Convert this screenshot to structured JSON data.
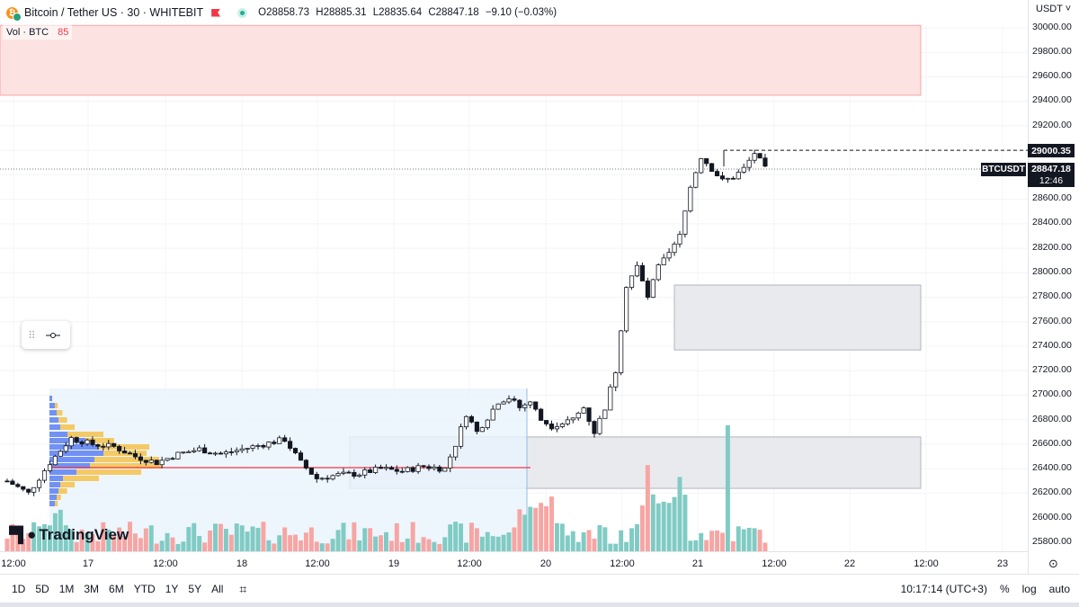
{
  "header": {
    "symbol_title": "Bitcoin / Tether US · 30 · WHITEBIT",
    "ohlc": [
      {
        "label": "O",
        "value": "28858.73"
      },
      {
        "label": "H",
        "value": "28885.31"
      },
      {
        "label": "L",
        "value": "28835.64"
      },
      {
        "label": "C",
        "value": "28847.18"
      }
    ],
    "change": "−9.10 (−0.03%)"
  },
  "volume_legend": {
    "label": "Vol · BTC",
    "value": "85"
  },
  "price_axis": {
    "currency": "USDT",
    "ticks": [
      "30000.00",
      "29800.00",
      "29600.00",
      "29400.00",
      "29200.00",
      "28600.00",
      "28400.00",
      "28200.00",
      "28000.00",
      "27800.00",
      "27600.00",
      "27400.00",
      "27200.00",
      "27000.00",
      "26800.00",
      "26600.00",
      "26400.00",
      "26200.00",
      "26000.00",
      "25800.00"
    ],
    "high_flag": "29000.35",
    "symbol_flag": "BTCUSDT",
    "last_price_flag": "28847.18",
    "countdown": "12:46"
  },
  "time_axis": {
    "ticks": [
      "12:00",
      "17",
      "12:00",
      "18",
      "12:00",
      "19",
      "12:00",
      "20",
      "12:00",
      "21",
      "12:00",
      "22",
      "12:00",
      "23"
    ]
  },
  "bottom_bar": {
    "ranges": [
      "1D",
      "5D",
      "1M",
      "3M",
      "6M",
      "YTD",
      "1Y",
      "5Y",
      "All"
    ],
    "clock": "10:17:14 (UTC+3)",
    "percent": "%",
    "log": "log",
    "auto": "auto"
  },
  "watermark": "TradingView",
  "colors": {
    "up": "#26a69a",
    "down": "#ef5350",
    "candle": "#131722",
    "vol_up": "#80cbc4",
    "vol_down": "#f7a5a3",
    "zone_red": "#fde2e2",
    "zone_gray": "#e9eaee",
    "vp_blue": "#5b7ff2",
    "vp_yellow": "#f5c24b",
    "poc": "#f23645"
  },
  "chart_data": {
    "type": "candlestick",
    "title": "Bitcoin / Tether US · 30 · WHITEBIT",
    "x_axis_labels": [
      "12:00",
      "17",
      "12:00",
      "18",
      "12:00",
      "19",
      "12:00",
      "20",
      "12:00",
      "21",
      "12:00",
      "22",
      "12:00",
      "23"
    ],
    "ylim": [
      25700,
      30080
    ],
    "price_path": [
      [
        0,
        26300
      ],
      [
        4,
        26200
      ],
      [
        8,
        26450
      ],
      [
        12,
        26650
      ],
      [
        16,
        26600
      ],
      [
        20,
        26580
      ],
      [
        24,
        26500
      ],
      [
        28,
        26450
      ],
      [
        32,
        26520
      ],
      [
        36,
        26560
      ],
      [
        40,
        26520
      ],
      [
        44,
        26560
      ],
      [
        48,
        26600
      ],
      [
        52,
        26640
      ],
      [
        55,
        26450
      ],
      [
        58,
        26320
      ],
      [
        62,
        26350
      ],
      [
        66,
        26360
      ],
      [
        70,
        26400
      ],
      [
        74,
        26380
      ],
      [
        78,
        26420
      ],
      [
        82,
        26400
      ],
      [
        84,
        26600
      ],
      [
        86,
        26850
      ],
      [
        88,
        26700
      ],
      [
        90,
        26820
      ],
      [
        92,
        26950
      ],
      [
        94,
        26980
      ],
      [
        96,
        26900
      ],
      [
        98,
        26950
      ],
      [
        100,
        26800
      ],
      [
        102,
        26750
      ],
      [
        104,
        26780
      ],
      [
        106,
        26800
      ],
      [
        108,
        26900
      ],
      [
        110,
        26700
      ],
      [
        112,
        26900
      ],
      [
        114,
        27200
      ],
      [
        116,
        27900
      ],
      [
        118,
        28050
      ],
      [
        120,
        27800
      ],
      [
        122,
        28050
      ],
      [
        124,
        28150
      ],
      [
        126,
        28300
      ],
      [
        128,
        28700
      ],
      [
        130,
        28950
      ],
      [
        132,
        28850
      ],
      [
        134,
        28750
      ],
      [
        136,
        28780
      ],
      [
        138,
        28850
      ],
      [
        140,
        28980
      ],
      [
        142,
        28847
      ]
    ],
    "annotations": {
      "high": 29000.35,
      "last": 28847.18,
      "zones": [
        {
          "from": 29450,
          "to": 30020,
          "color": "red"
        },
        {
          "from": 27370,
          "to": 27900,
          "color": "gray"
        },
        {
          "from": 26240,
          "to": 26660,
          "color": "gray"
        }
      ]
    }
  }
}
